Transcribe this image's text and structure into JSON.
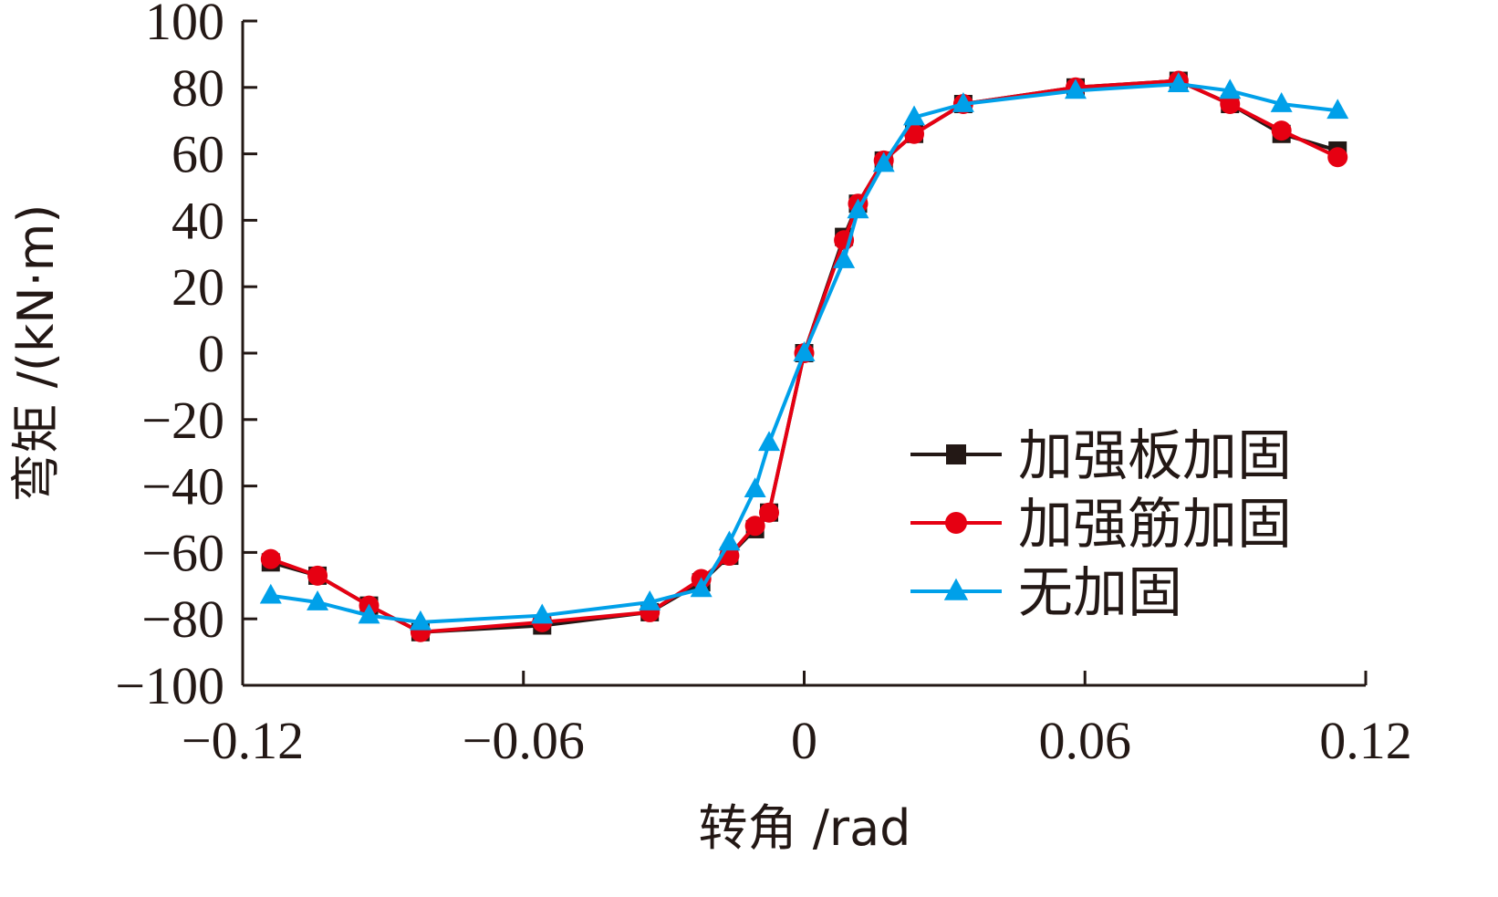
{
  "chart_data": {
    "type": "line",
    "xlabel": "转角 /rad",
    "ylabel": "弯矩 /(kN·m)",
    "xlim": [
      -0.12,
      0.12
    ],
    "ylim": [
      -100,
      100
    ],
    "x_ticks": [
      -0.12,
      -0.06,
      0,
      0.06,
      0.12
    ],
    "x_tick_labels": [
      "−0.12",
      "−0.06",
      "0",
      "0.06",
      "0.12"
    ],
    "y_ticks": [
      -100,
      -80,
      -60,
      -40,
      -20,
      0,
      20,
      40,
      60,
      80,
      100
    ],
    "y_tick_labels": [
      "−100",
      "−80",
      "−60",
      "−40",
      "−20",
      "0",
      "20",
      "40",
      "60",
      "80",
      "100"
    ],
    "grid": false,
    "legend_position": "right",
    "series": [
      {
        "name": "加强板加固",
        "marker": "square",
        "color": "#231815",
        "x": [
          -0.114,
          -0.104,
          -0.093,
          -0.082,
          -0.056,
          -0.033,
          -0.022,
          -0.016,
          -0.0105,
          -0.0075,
          0,
          0.0085,
          0.0115,
          0.017,
          0.0235,
          0.034,
          0.058,
          0.08,
          0.091,
          0.102,
          0.114
        ],
        "y": [
          -63,
          -67,
          -76,
          -84,
          -82,
          -78,
          -69,
          -61,
          -53,
          -48,
          0,
          35,
          45,
          58,
          66,
          75,
          80,
          82,
          75,
          66,
          61
        ]
      },
      {
        "name": "加强筋加固",
        "marker": "circle",
        "color": "#e60012",
        "x": [
          -0.114,
          -0.104,
          -0.093,
          -0.082,
          -0.056,
          -0.033,
          -0.022,
          -0.016,
          -0.0105,
          -0.0075,
          0,
          0.0085,
          0.0115,
          0.017,
          0.0235,
          0.034,
          0.058,
          0.08,
          0.091,
          0.102,
          0.114
        ],
        "y": [
          -62,
          -67,
          -76,
          -84,
          -81,
          -78,
          -68,
          -61,
          -52,
          -48,
          0,
          34,
          45,
          58,
          66,
          75,
          80,
          82,
          75,
          67,
          59
        ]
      },
      {
        "name": "无加固",
        "marker": "triangle",
        "color": "#00a0e9",
        "x": [
          -0.114,
          -0.104,
          -0.093,
          -0.082,
          -0.056,
          -0.033,
          -0.022,
          -0.016,
          -0.0105,
          -0.0075,
          0,
          0.0085,
          0.0115,
          0.017,
          0.0235,
          0.034,
          0.058,
          0.08,
          0.091,
          0.102,
          0.114
        ],
        "y": [
          -73,
          -75,
          -79,
          -81,
          -79,
          -75,
          -71,
          -57,
          -41,
          -27,
          0,
          28,
          43,
          57,
          71,
          75,
          79,
          81,
          79,
          75,
          73
        ]
      }
    ]
  }
}
